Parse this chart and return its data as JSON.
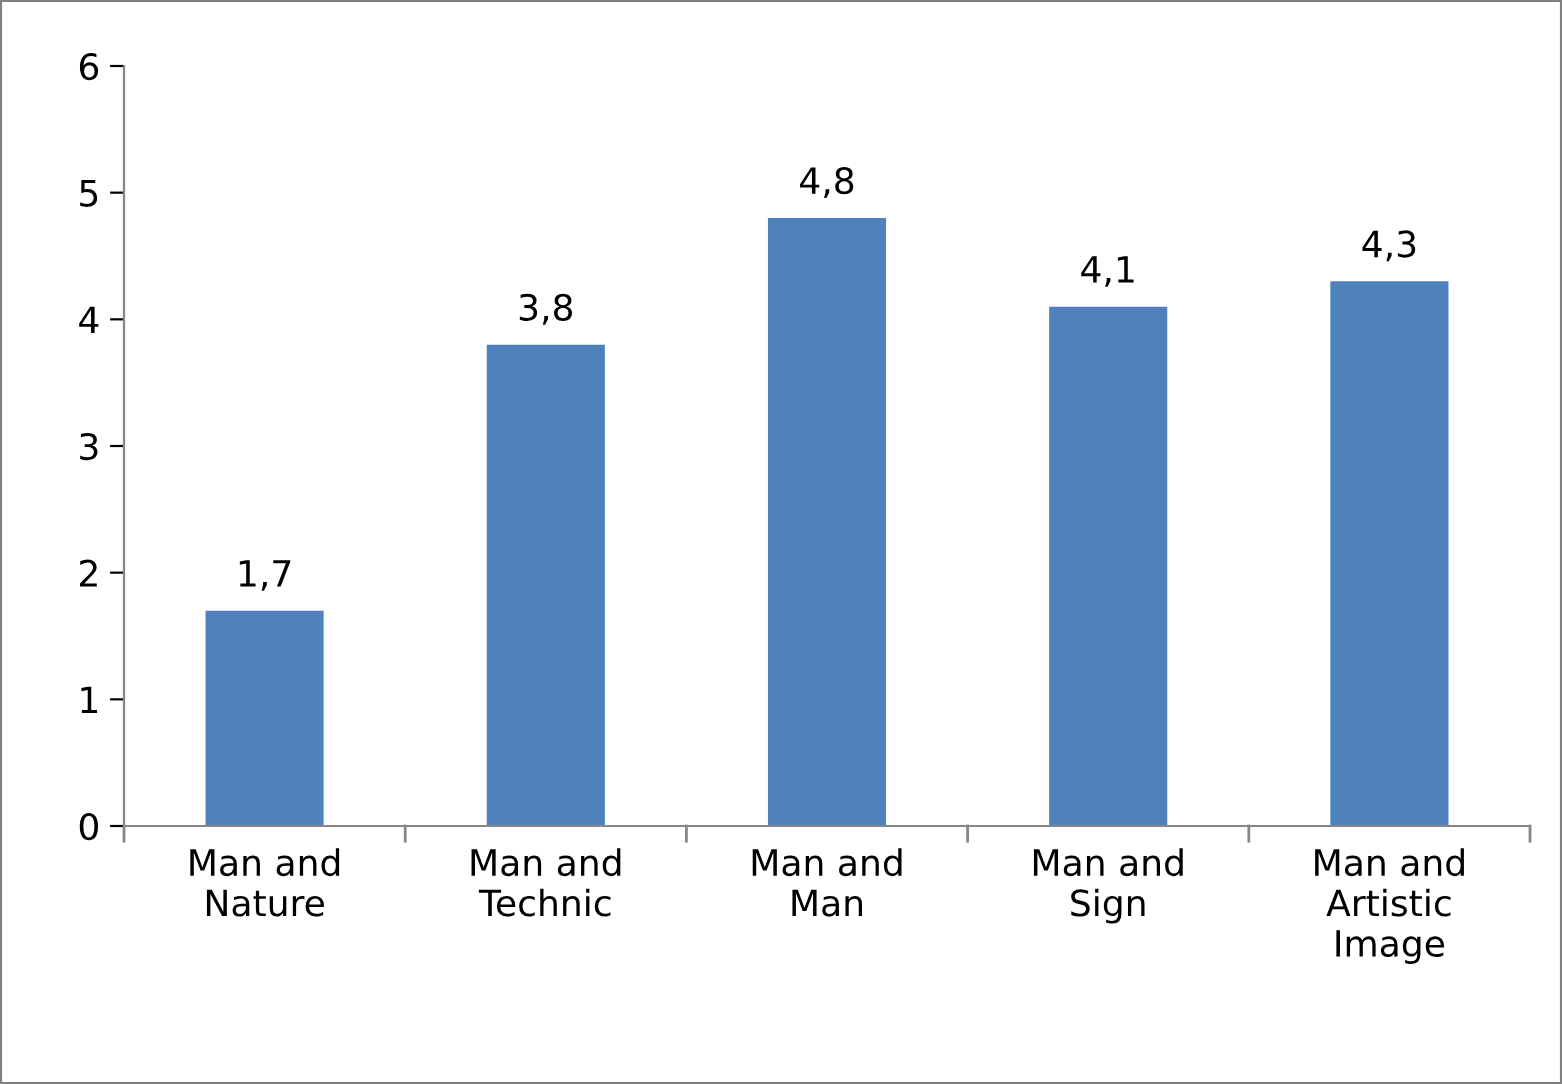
{
  "chart_data": {
    "type": "bar",
    "categories": [
      "Man and\nNature",
      "Man and\nTechnic",
      "Man and\nMan",
      "Man and\nSign",
      "Man and\nArtistic\nImage"
    ],
    "values": [
      1.7,
      3.8,
      4.8,
      4.1,
      4.3
    ],
    "value_labels": [
      "1,7",
      "3,8",
      "4,8",
      "4,1",
      "4,3"
    ],
    "color": "#4f81bd",
    "ylim": [
      0,
      6
    ],
    "yticks": [
      0,
      1,
      2,
      3,
      4,
      5,
      6
    ],
    "grid": false,
    "legend": false
  }
}
